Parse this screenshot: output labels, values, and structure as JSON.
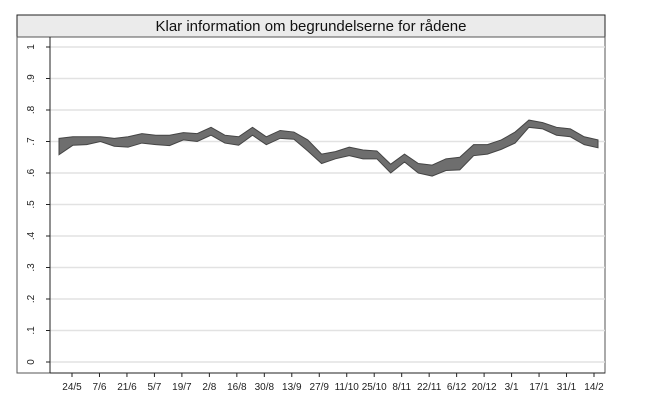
{
  "chart_data": {
    "type": "area",
    "title": "Klar information om begrundelserne for rådene",
    "xlabel": "",
    "ylabel": "",
    "ylim": [
      0,
      1
    ],
    "y_ticks": [
      "0",
      ".1",
      ".2",
      ".3",
      ".4",
      ".5",
      ".6",
      ".7",
      ".8",
      ".9",
      "1"
    ],
    "x_tick_labels": [
      "24/5",
      "7/6",
      "21/6",
      "5/7",
      "19/7",
      "2/8",
      "16/8",
      "30/8",
      "13/9",
      "27/9",
      "11/10",
      "25/10",
      "8/11",
      "22/11",
      "6/12",
      "20/12",
      "3/1",
      "17/1",
      "31/1",
      "14/2"
    ],
    "grid": true,
    "band_color": "#6e6e6e",
    "series": [
      {
        "upper": [
          0.71,
          0.715,
          0.715,
          0.715,
          0.71,
          0.715,
          0.725,
          0.72,
          0.72,
          0.728,
          0.725,
          0.745,
          0.72,
          0.715,
          0.745,
          0.715,
          0.735,
          0.73,
          0.705,
          0.66,
          0.668,
          0.682,
          0.673,
          0.67,
          0.628,
          0.66,
          0.63,
          0.625,
          0.645,
          0.65,
          0.69,
          0.69,
          0.705,
          0.73,
          0.768,
          0.76,
          0.745,
          0.74,
          0.715,
          0.705
        ],
        "lower": [
          0.658,
          0.688,
          0.69,
          0.7,
          0.685,
          0.682,
          0.695,
          0.69,
          0.687,
          0.705,
          0.7,
          0.72,
          0.695,
          0.688,
          0.72,
          0.69,
          0.71,
          0.707,
          0.67,
          0.63,
          0.645,
          0.655,
          0.645,
          0.645,
          0.6,
          0.635,
          0.6,
          0.59,
          0.608,
          0.61,
          0.655,
          0.66,
          0.675,
          0.695,
          0.745,
          0.74,
          0.72,
          0.715,
          0.69,
          0.68
        ]
      }
    ]
  }
}
